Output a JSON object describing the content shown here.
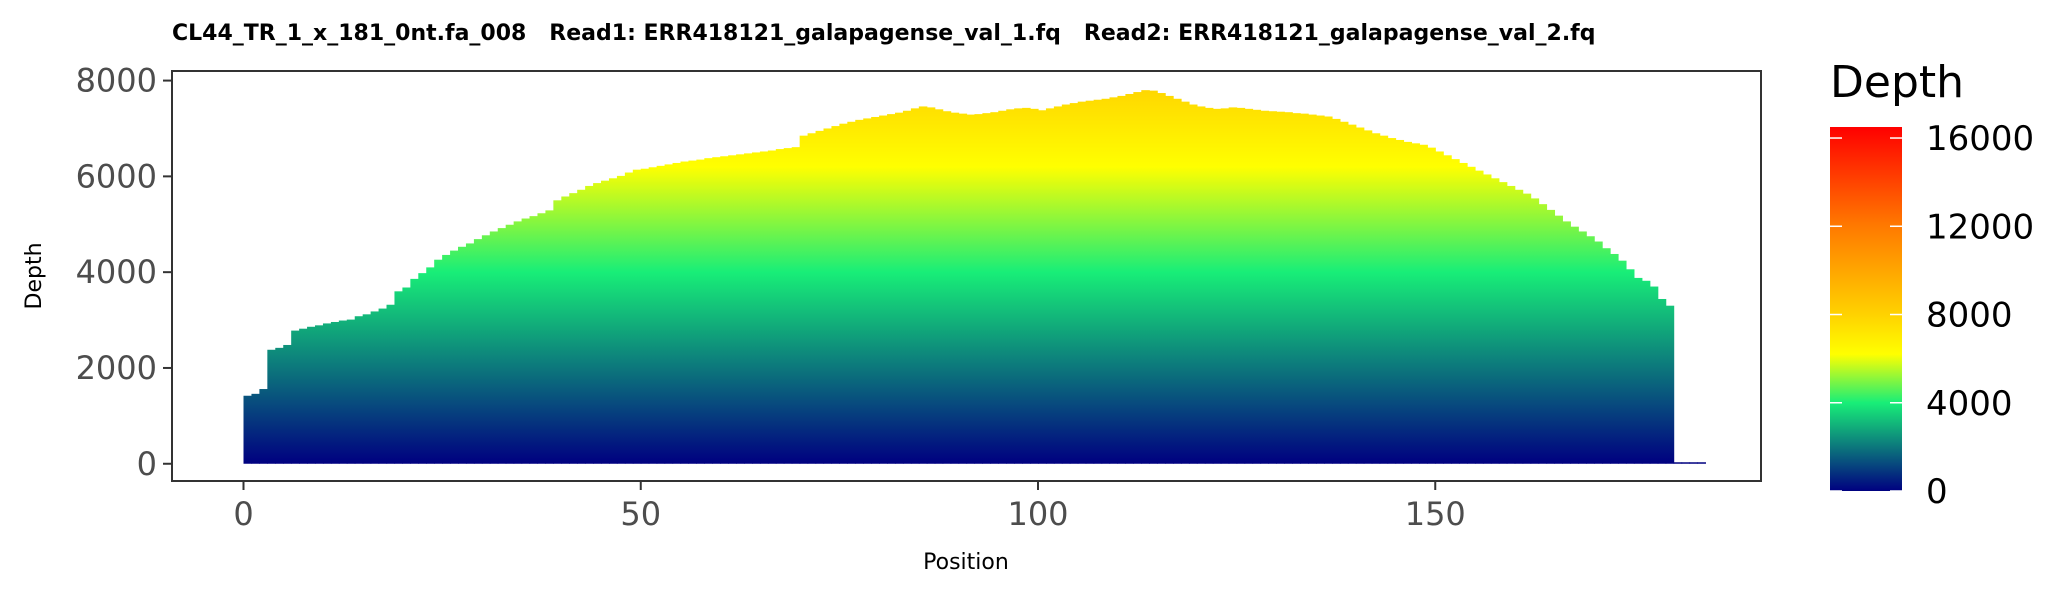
{
  "chart_data": {
    "type": "bar",
    "title": "CL44_TR_1_x_181_0nt.fa_008   Read1: ERR418121_galapagense_val_1.fq   Read2: ERR418121_galapagense_val_2.fq",
    "xlabel": "Position",
    "ylabel": "Depth",
    "xlim": [
      -9,
      191
    ],
    "ylim": [
      -360,
      8200
    ],
    "xticks": [
      0,
      50,
      100,
      150
    ],
    "xtick_labels": [
      "0",
      "50",
      "100",
      "150"
    ],
    "yticks": [
      0,
      2000,
      4000,
      6000,
      8000
    ],
    "ytick_labels": [
      "0",
      "2000",
      "4000",
      "6000",
      "8000"
    ],
    "grid": false,
    "x": [
      0,
      1,
      2,
      3,
      4,
      5,
      6,
      7,
      8,
      9,
      10,
      11,
      12,
      13,
      14,
      15,
      16,
      17,
      18,
      19,
      20,
      21,
      22,
      23,
      24,
      25,
      26,
      27,
      28,
      29,
      30,
      31,
      32,
      33,
      34,
      35,
      36,
      37,
      38,
      39,
      40,
      41,
      42,
      43,
      44,
      45,
      46,
      47,
      48,
      49,
      50,
      51,
      52,
      53,
      54,
      55,
      56,
      57,
      58,
      59,
      60,
      61,
      62,
      63,
      64,
      65,
      66,
      67,
      68,
      69,
      70,
      71,
      72,
      73,
      74,
      75,
      76,
      77,
      78,
      79,
      80,
      81,
      82,
      83,
      84,
      85,
      86,
      87,
      88,
      89,
      90,
      91,
      92,
      93,
      94,
      95,
      96,
      97,
      98,
      99,
      100,
      101,
      102,
      103,
      104,
      105,
      106,
      107,
      108,
      109,
      110,
      111,
      112,
      113,
      114,
      115,
      116,
      117,
      118,
      119,
      120,
      121,
      122,
      123,
      124,
      125,
      126,
      127,
      128,
      129,
      130,
      131,
      132,
      133,
      134,
      135,
      136,
      137,
      138,
      139,
      140,
      141,
      142,
      143,
      144,
      145,
      146,
      147,
      148,
      149,
      150,
      151,
      152,
      153,
      154,
      155,
      156,
      157,
      158,
      159,
      160,
      161,
      162,
      163,
      164,
      165,
      166,
      167,
      168,
      169,
      170,
      171,
      172,
      173,
      174,
      175,
      176,
      177,
      178,
      179,
      180,
      181,
      182,
      183
    ],
    "values": [
      1420,
      1460,
      1560,
      2380,
      2420,
      2480,
      2780,
      2820,
      2860,
      2890,
      2930,
      2960,
      2990,
      3010,
      3080,
      3120,
      3180,
      3240,
      3320,
      3600,
      3680,
      3860,
      3980,
      4100,
      4260,
      4360,
      4450,
      4530,
      4600,
      4690,
      4770,
      4850,
      4920,
      4990,
      5060,
      5120,
      5170,
      5230,
      5290,
      5500,
      5580,
      5650,
      5720,
      5800,
      5860,
      5910,
      5960,
      6010,
      6080,
      6140,
      6160,
      6190,
      6220,
      6250,
      6280,
      6310,
      6330,
      6350,
      6380,
      6400,
      6420,
      6440,
      6460,
      6480,
      6500,
      6520,
      6540,
      6570,
      6590,
      6610,
      6850,
      6900,
      6950,
      7000,
      7050,
      7100,
      7140,
      7180,
      7210,
      7240,
      7270,
      7300,
      7330,
      7370,
      7420,
      7460,
      7440,
      7400,
      7360,
      7330,
      7310,
      7290,
      7300,
      7320,
      7340,
      7370,
      7400,
      7420,
      7430,
      7410,
      7380,
      7420,
      7460,
      7500,
      7530,
      7560,
      7580,
      7600,
      7620,
      7650,
      7680,
      7720,
      7760,
      7800,
      7790,
      7740,
      7680,
      7620,
      7560,
      7500,
      7460,
      7430,
      7410,
      7420,
      7440,
      7430,
      7410,
      7390,
      7370,
      7360,
      7350,
      7340,
      7320,
      7310,
      7290,
      7270,
      7250,
      7200,
      7140,
      7080,
      7020,
      6960,
      6900,
      6850,
      6800,
      6760,
      6720,
      6690,
      6660,
      6600,
      6520,
      6440,
      6360,
      6280,
      6200,
      6120,
      6040,
      5960,
      5880,
      5800,
      5720,
      5640,
      5540,
      5420,
      5300,
      5180,
      5060,
      4950,
      4850,
      4750,
      4640,
      4500,
      4380,
      4240,
      4060,
      3880,
      3820,
      3700,
      3440,
      3300,
      0,
      0,
      0,
      0
    ],
    "colorbar": {
      "title": "Depth",
      "min": 0,
      "max": 16500,
      "ticks": [
        0,
        4000,
        8000,
        12000,
        16000
      ],
      "tick_labels": [
        "0",
        "4000",
        "8000",
        "12000",
        "16000"
      ],
      "stops": [
        {
          "v": 0,
          "color": "#000080"
        },
        {
          "v": 4000,
          "color": "#18ee78"
        },
        {
          "v": 6200,
          "color": "#ffff00"
        },
        {
          "v": 8000,
          "color": "#ffd200"
        },
        {
          "v": 12000,
          "color": "#ff7a00"
        },
        {
          "v": 16500,
          "color": "#ff0000"
        }
      ]
    }
  }
}
